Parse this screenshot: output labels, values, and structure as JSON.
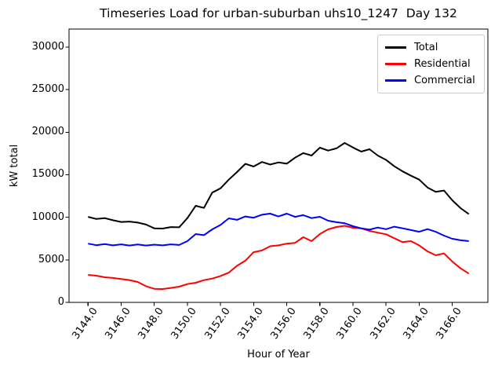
{
  "chart_data": {
    "type": "line",
    "title": "Timeseries Load for urban-suburban uhs10_1247  Day 132",
    "xlabel": "Hour of Year",
    "ylabel": "kW total",
    "grid": false,
    "legend_position": "upper right",
    "xlim": [
      3142.85,
      3168.15
    ],
    "ylim": [
      0,
      32120
    ],
    "x_ticks": [
      3144,
      3146,
      3148,
      3150,
      3152,
      3154,
      3156,
      3158,
      3160,
      3162,
      3164,
      3166
    ],
    "x_tick_labels": [
      "3144.0",
      "3146.0",
      "3148.0",
      "3150.0",
      "3152.0",
      "3154.0",
      "3156.0",
      "3158.0",
      "3160.0",
      "3162.0",
      "3164.0",
      "3166.0"
    ],
    "y_ticks": [
      0,
      5000,
      10000,
      15000,
      20000,
      25000,
      30000
    ],
    "y_tick_labels": [
      "0",
      "5000",
      "10000",
      "15000",
      "20000",
      "25000",
      "30000"
    ],
    "x": [
      3144.0,
      3144.5,
      3145.0,
      3145.5,
      3146.0,
      3146.5,
      3147.0,
      3147.5,
      3148.0,
      3148.5,
      3149.0,
      3149.5,
      3150.0,
      3150.5,
      3151.0,
      3151.5,
      3152.0,
      3152.5,
      3153.0,
      3153.5,
      3154.0,
      3154.5,
      3155.0,
      3155.5,
      3156.0,
      3156.5,
      3157.0,
      3157.5,
      3158.0,
      3158.5,
      3159.0,
      3159.5,
      3160.0,
      3160.5,
      3161.0,
      3161.5,
      3162.0,
      3162.5,
      3163.0,
      3163.5,
      3164.0,
      3164.5,
      3165.0,
      3165.5,
      3166.0,
      3166.5,
      3167.0
    ],
    "series": [
      {
        "name": "Total",
        "color": "#000000",
        "values": [
          10050,
          9800,
          9900,
          9650,
          9450,
          9500,
          9380,
          9150,
          8700,
          8680,
          8850,
          8820,
          9900,
          11350,
          11100,
          12900,
          13400,
          14430,
          15320,
          16280,
          15970,
          16500,
          16200,
          16450,
          16300,
          17000,
          17550,
          17260,
          18180,
          17840,
          18100,
          18740,
          18200,
          17720,
          18000,
          17260,
          16740,
          16000,
          15400,
          14890,
          14430,
          13500,
          13000,
          13140,
          12000,
          11080,
          10370
        ]
      },
      {
        "name": "Residential",
        "color": "#ff0000",
        "values": [
          3230,
          3140,
          2950,
          2870,
          2740,
          2620,
          2400,
          1900,
          1600,
          1570,
          1700,
          1850,
          2150,
          2310,
          2610,
          2800,
          3100,
          3500,
          4300,
          4900,
          5900,
          6100,
          6600,
          6700,
          6900,
          7000,
          7660,
          7200,
          8030,
          8580,
          8860,
          9000,
          8770,
          8700,
          8400,
          8200,
          8000,
          7540,
          7080,
          7200,
          6700,
          6000,
          5540,
          5750,
          4800,
          4000,
          3390
        ]
      },
      {
        "name": "Commercial",
        "color": "#0000ff",
        "values": [
          6900,
          6720,
          6850,
          6700,
          6820,
          6680,
          6800,
          6680,
          6780,
          6700,
          6820,
          6750,
          7200,
          8030,
          7900,
          8580,
          9100,
          9880,
          9700,
          10100,
          9950,
          10300,
          10430,
          10100,
          10430,
          10050,
          10250,
          9900,
          10060,
          9600,
          9420,
          9300,
          8950,
          8700,
          8550,
          8800,
          8600,
          8900,
          8700,
          8500,
          8300,
          8610,
          8300,
          7850,
          7480,
          7300,
          7200
        ]
      }
    ]
  }
}
